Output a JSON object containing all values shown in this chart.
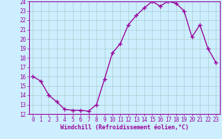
{
  "x": [
    0,
    1,
    2,
    3,
    4,
    5,
    6,
    7,
    8,
    9,
    10,
    11,
    12,
    13,
    14,
    15,
    16,
    17,
    18,
    19,
    20,
    21,
    22,
    23
  ],
  "y": [
    16.0,
    15.5,
    14.0,
    13.3,
    12.5,
    12.4,
    12.4,
    12.3,
    13.0,
    15.7,
    18.5,
    19.5,
    21.5,
    22.5,
    23.3,
    24.0,
    23.5,
    24.0,
    23.8,
    23.0,
    20.2,
    21.5,
    19.0,
    17.5
  ],
  "line_color": "#990099",
  "marker": "+",
  "marker_size": 4,
  "bg_color": "#cceeff",
  "grid_color": "#aacccc",
  "xlabel": "Windchill (Refroidissement éolien,°C)",
  "xlabel_color": "#990099",
  "tick_color": "#990099",
  "xlim": [
    -0.5,
    23.5
  ],
  "ylim": [
    12,
    24
  ],
  "yticks": [
    12,
    13,
    14,
    15,
    16,
    17,
    18,
    19,
    20,
    21,
    22,
    23,
    24
  ],
  "xticks": [
    0,
    1,
    2,
    3,
    4,
    5,
    6,
    7,
    8,
    9,
    10,
    11,
    12,
    13,
    14,
    15,
    16,
    17,
    18,
    19,
    20,
    21,
    22,
    23
  ],
  "line_width": 1.0,
  "tick_fontsize": 5.5,
  "xlabel_fontsize": 6.0
}
